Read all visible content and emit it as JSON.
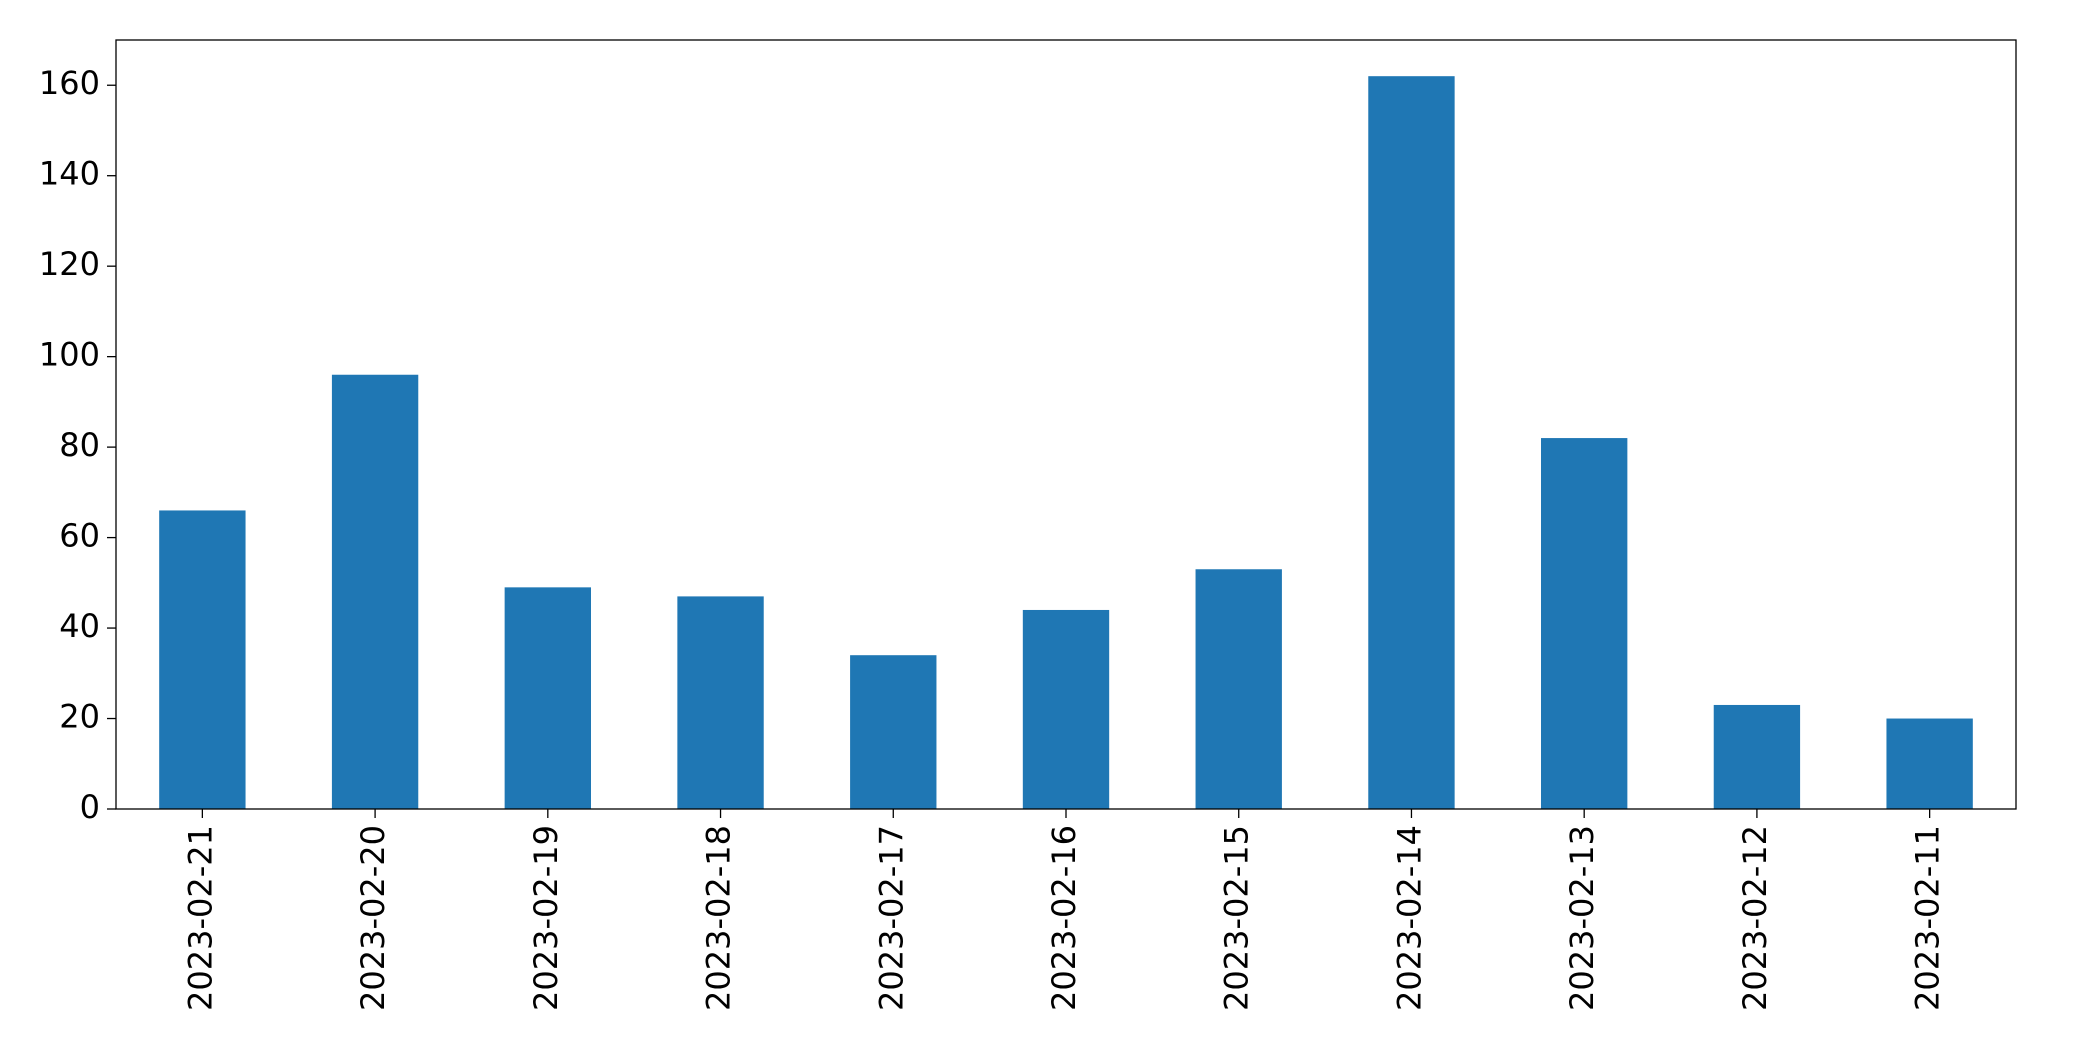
{
  "chart_data": {
    "type": "bar",
    "categories": [
      "2023-02-21",
      "2023-02-20",
      "2023-02-19",
      "2023-02-18",
      "2023-02-17",
      "2023-02-16",
      "2023-02-15",
      "2023-02-14",
      "2023-02-13",
      "2023-02-12",
      "2023-02-11"
    ],
    "values": [
      66,
      96,
      49,
      47,
      34,
      44,
      53,
      162,
      82,
      23,
      20
    ],
    "color": "#1f77b4",
    "ylim": [
      0,
      170
    ],
    "yticks": [
      0,
      20,
      40,
      60,
      80,
      100,
      120,
      140,
      160
    ],
    "grid": false
  }
}
